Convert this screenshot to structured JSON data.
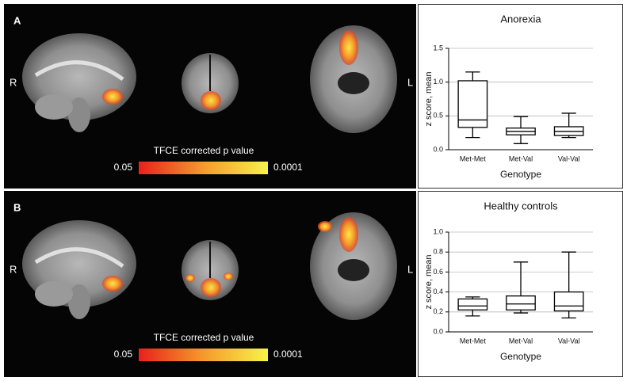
{
  "panels": [
    {
      "label": "A",
      "left_side": "R",
      "right_side": "L",
      "colorbar": {
        "title": "TFCE corrected p value",
        "min_label": "0.05",
        "max_label": "0.0001"
      }
    },
    {
      "label": "B",
      "left_side": "R",
      "right_side": "L",
      "colorbar": {
        "title": "TFCE corrected p value",
        "min_label": "0.05",
        "max_label": "0.0001"
      }
    }
  ],
  "chart_data": [
    {
      "type": "box",
      "title": "Anorexia",
      "x_label": "Genotype",
      "y_label": "z score, mean",
      "categories": [
        "Met-Met",
        "Met-Val",
        "Val-Val"
      ],
      "values": [
        {
          "min": 0.18,
          "q1": 0.33,
          "median": 0.44,
          "q3": 1.02,
          "max": 1.15
        },
        {
          "min": 0.09,
          "q1": 0.22,
          "median": 0.27,
          "q3": 0.32,
          "max": 0.49
        },
        {
          "min": 0.18,
          "q1": 0.21,
          "median": 0.27,
          "q3": 0.34,
          "max": 0.54
        }
      ],
      "color": "#000000",
      "ylim": [
        0,
        1.5
      ],
      "yticks": [
        {
          "value": 0,
          "label": "0.0"
        },
        0.5,
        {
          "value": 1,
          "label": "1.0"
        },
        1.5
      ],
      "grid": true
    },
    {
      "type": "box",
      "title": "Healthy controls",
      "x_label": "Genotype",
      "y_label": "z score, mean",
      "categories": [
        "Met-Met",
        "Met-Val",
        "Val-Val"
      ],
      "values": [
        {
          "min": 0.16,
          "q1": 0.22,
          "median": 0.26,
          "q3": 0.33,
          "max": 0.35
        },
        {
          "min": 0.19,
          "q1": 0.22,
          "median": 0.28,
          "q3": 0.36,
          "max": 0.7
        },
        {
          "min": 0.14,
          "q1": 0.21,
          "median": 0.26,
          "q3": 0.4,
          "max": 0.8
        }
      ],
      "color": "#000000",
      "ylim": [
        0,
        1
      ],
      "yticks": [
        {
          "value": 0,
          "label": "0.0"
        },
        {
          "value": 0.2,
          "label": "0.2"
        },
        {
          "value": 0.4,
          "label": "0.4"
        },
        {
          "value": 0.6,
          "label": "0.6"
        },
        {
          "value": 0.8,
          "label": "0.8"
        },
        {
          "value": 1,
          "label": "1.0"
        }
      ],
      "grid": true
    }
  ]
}
